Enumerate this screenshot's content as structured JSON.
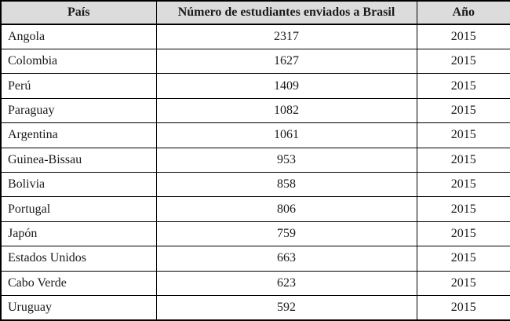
{
  "table": {
    "columns": [
      {
        "label": "País"
      },
      {
        "label": "Número de estudiantes enviados a Brasil"
      },
      {
        "label": "Año"
      }
    ],
    "rows": [
      {
        "country": "Angola",
        "students": "2317",
        "year": "2015"
      },
      {
        "country": "Colombia",
        "students": "1627",
        "year": "2015"
      },
      {
        "country": "Perú",
        "students": "1409",
        "year": "2015"
      },
      {
        "country": "Paraguay",
        "students": "1082",
        "year": "2015"
      },
      {
        "country": "Argentina",
        "students": "1061",
        "year": "2015"
      },
      {
        "country": "Guinea-Bissau",
        "students": "953",
        "year": "2015"
      },
      {
        "country": "Bolivia",
        "students": "858",
        "year": "2015"
      },
      {
        "country": "Portugal",
        "students": "806",
        "year": "2015"
      },
      {
        "country": "Japón",
        "students": "759",
        "year": "2015"
      },
      {
        "country": "Estados Unidos",
        "students": "663",
        "year": "2015"
      },
      {
        "country": "Cabo Verde",
        "students": "623",
        "year": "2015"
      },
      {
        "country": "Uruguay",
        "students": "592",
        "year": "2015"
      }
    ]
  },
  "colors": {
    "header_bg": "#dcdcdc",
    "border": "#000000",
    "text": "#1a1a1a"
  }
}
